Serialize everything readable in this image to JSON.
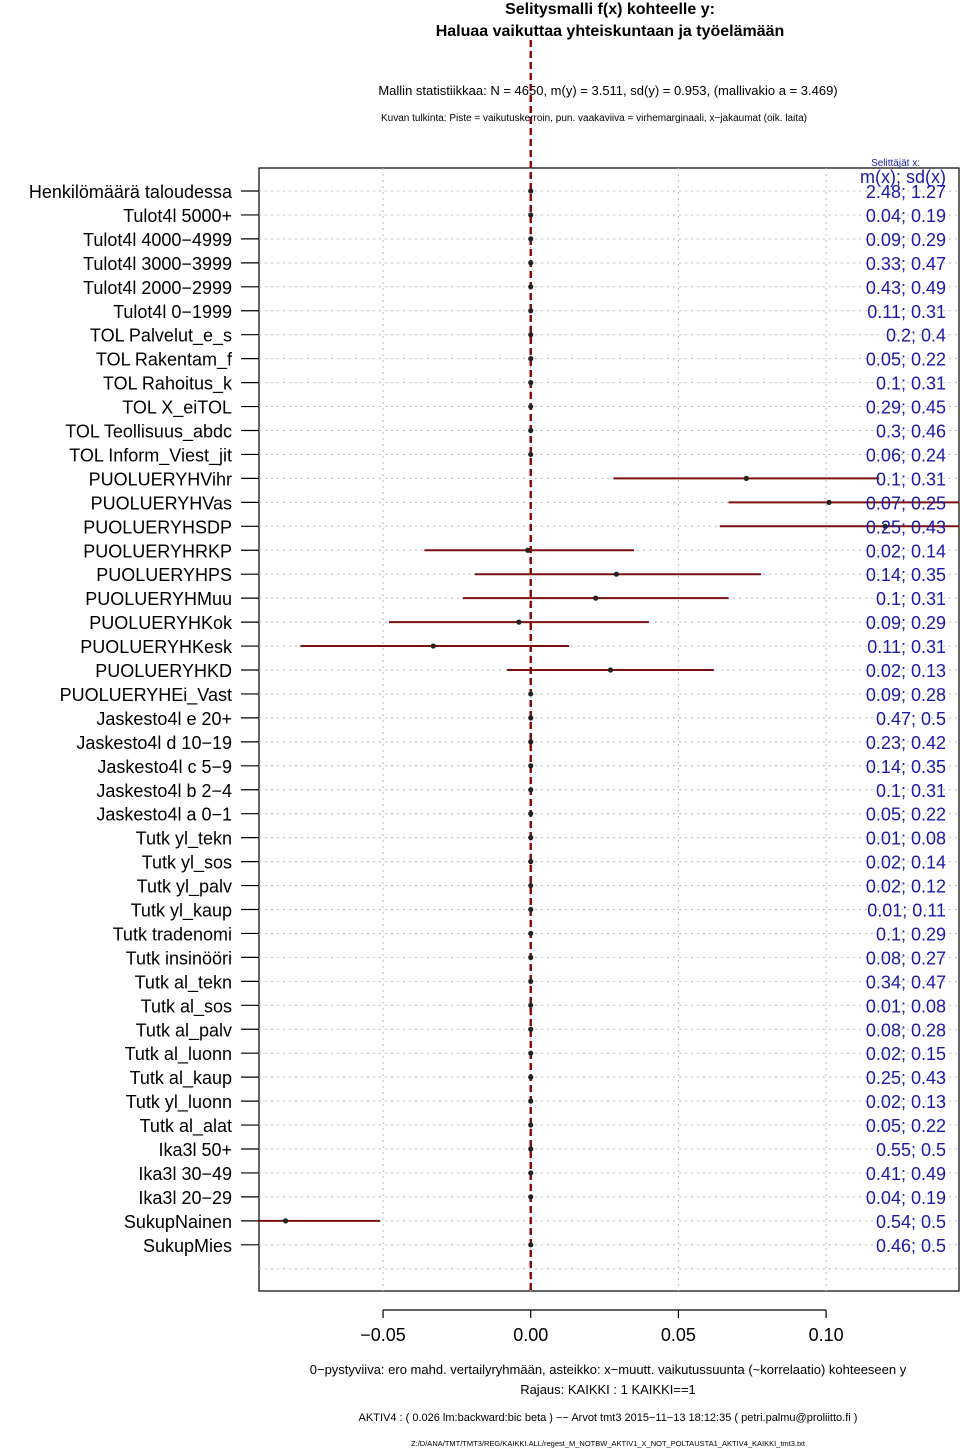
{
  "chart_data": {
    "type": "scatter",
    "title": "Selitysmalli f(x) kohteelle y:",
    "subtitle": "Haluaa vaikuttaa yhteiskuntaan ja työelämään",
    "stats_line": "Mallin statistiikkaa: N = 4650, m(y) = 3.511, sd(y) = 0.953, (mallivakio a = 3.469)",
    "reading_note": "Kuvan tulkinta: Piste = vaikutuskerroin, pun. vaakaviiva = virhemarginaali, x−jakaumat (oik. laita)",
    "explainers_label": "Selittäjät x:",
    "stats_header": "m(x); sd(x)",
    "xlim": [
      -0.092,
      0.145
    ],
    "xticks": [
      -0.05,
      0.0,
      0.05,
      0.1
    ],
    "xtick_labels": [
      "−0.05",
      "0.00",
      "0.05",
      "0.10"
    ],
    "xlabel": "0−pystyviiva: ero mahd. vertailyryhmään, asteikko: x−muutt. vaikutussuunta (~korrelaatio) kohteeseen y",
    "footer_scope": "Rajaus: KAIKKI : 1  KAIKKI==1",
    "footer_meta": "AKTIV4 : ( 0.026 lm:backward:bic beta )  −−  Arvot tmt3 2015−11−13 18:12:35 ( petri.palmu@proliitto.fi )",
    "footer_path": "Z:/D/ANA/TMT/TMT3/REG/KAIKKI.ALL/regest_M_NOTBW_AKTIV1_X_NOT_POLTAUSTA1_AKTIV4_KAIKKI_tmt3.txt",
    "colors": {
      "point": "#222222",
      "error_bar": "#7a1010",
      "zero_line": "#8b0000",
      "stats_text": "#1a1aa6",
      "grid": "#bbbbbb"
    },
    "rows": [
      {
        "label": "Henkilömäärä taloudessa",
        "coef": 0.0,
        "lo": null,
        "hi": null,
        "stats": "2.48; 1.27"
      },
      {
        "label": "Tulot4l 5000+",
        "coef": 0.0,
        "lo": null,
        "hi": null,
        "stats": "0.04; 0.19"
      },
      {
        "label": "Tulot4l 4000−4999",
        "coef": 0.0,
        "lo": null,
        "hi": null,
        "stats": "0.09; 0.29"
      },
      {
        "label": "Tulot4l 3000−3999",
        "coef": 0.0,
        "lo": null,
        "hi": null,
        "stats": "0.33; 0.47"
      },
      {
        "label": "Tulot4l 2000−2999",
        "coef": 0.0,
        "lo": null,
        "hi": null,
        "stats": "0.43; 0.49"
      },
      {
        "label": "Tulot4l 0−1999",
        "coef": 0.0,
        "lo": null,
        "hi": null,
        "stats": "0.11; 0.31"
      },
      {
        "label": "TOL Palvelut_e_s",
        "coef": 0.0,
        "lo": null,
        "hi": null,
        "stats": "0.2; 0.4"
      },
      {
        "label": "TOL Rakentam_f",
        "coef": 0.0,
        "lo": null,
        "hi": null,
        "stats": "0.05; 0.22"
      },
      {
        "label": "TOL Rahoitus_k",
        "coef": 0.0,
        "lo": null,
        "hi": null,
        "stats": "0.1; 0.31"
      },
      {
        "label": "TOL X_eiTOL",
        "coef": 0.0,
        "lo": null,
        "hi": null,
        "stats": "0.29; 0.45"
      },
      {
        "label": "TOL Teollisuus_abdc",
        "coef": 0.0,
        "lo": null,
        "hi": null,
        "stats": "0.3; 0.46"
      },
      {
        "label": "TOL Inform_Viest_jit",
        "coef": 0.0,
        "lo": null,
        "hi": null,
        "stats": "0.06; 0.24"
      },
      {
        "label": "PUOLUERYHVihr",
        "coef": 0.073,
        "lo": 0.028,
        "hi": 0.118,
        "stats": "0.1; 0.31"
      },
      {
        "label": "PUOLUERYHVas",
        "coef": 0.101,
        "lo": 0.067,
        "hi": 0.15,
        "stats": "0.07; 0.25"
      },
      {
        "label": "PUOLUERYHSDP",
        "coef": 0.12,
        "lo": 0.064,
        "hi": 0.15,
        "stats": "0.25; 0.43"
      },
      {
        "label": "PUOLUERYHRKP",
        "coef": -0.001,
        "lo": -0.036,
        "hi": 0.035,
        "stats": "0.02; 0.14"
      },
      {
        "label": "PUOLUERYHPS",
        "coef": 0.029,
        "lo": -0.019,
        "hi": 0.078,
        "stats": "0.14; 0.35"
      },
      {
        "label": "PUOLUERYHMuu",
        "coef": 0.022,
        "lo": -0.023,
        "hi": 0.067,
        "stats": "0.1; 0.31"
      },
      {
        "label": "PUOLUERYHKok",
        "coef": -0.004,
        "lo": -0.048,
        "hi": 0.04,
        "stats": "0.09; 0.29"
      },
      {
        "label": "PUOLUERYHKesk",
        "coef": -0.033,
        "lo": -0.078,
        "hi": 0.013,
        "stats": "0.11; 0.31"
      },
      {
        "label": "PUOLUERYHKD",
        "coef": 0.027,
        "lo": -0.008,
        "hi": 0.062,
        "stats": "0.02; 0.13"
      },
      {
        "label": "PUOLUERYHEi_Vast",
        "coef": 0.0,
        "lo": null,
        "hi": null,
        "stats": "0.09; 0.28"
      },
      {
        "label": "Jaskesto4l e 20+",
        "coef": 0.0,
        "lo": null,
        "hi": null,
        "stats": "0.47; 0.5"
      },
      {
        "label": "Jaskesto4l d 10−19",
        "coef": 0.0,
        "lo": null,
        "hi": null,
        "stats": "0.23; 0.42"
      },
      {
        "label": "Jaskesto4l c 5−9",
        "coef": 0.0,
        "lo": null,
        "hi": null,
        "stats": "0.14; 0.35"
      },
      {
        "label": "Jaskesto4l b 2−4",
        "coef": 0.0,
        "lo": null,
        "hi": null,
        "stats": "0.1; 0.31"
      },
      {
        "label": "Jaskesto4l a 0−1",
        "coef": 0.0,
        "lo": null,
        "hi": null,
        "stats": "0.05; 0.22"
      },
      {
        "label": "Tutk yl_tekn",
        "coef": 0.0,
        "lo": null,
        "hi": null,
        "stats": "0.01; 0.08"
      },
      {
        "label": "Tutk yl_sos",
        "coef": 0.0,
        "lo": null,
        "hi": null,
        "stats": "0.02; 0.14"
      },
      {
        "label": "Tutk yl_palv",
        "coef": 0.0,
        "lo": null,
        "hi": null,
        "stats": "0.02; 0.12"
      },
      {
        "label": "Tutk yl_kaup",
        "coef": 0.0,
        "lo": null,
        "hi": null,
        "stats": "0.01; 0.11"
      },
      {
        "label": "Tutk tradenomi",
        "coef": 0.0,
        "lo": null,
        "hi": null,
        "stats": "0.1; 0.29"
      },
      {
        "label": "Tutk insinööri",
        "coef": 0.0,
        "lo": null,
        "hi": null,
        "stats": "0.08; 0.27"
      },
      {
        "label": "Tutk al_tekn",
        "coef": 0.0,
        "lo": null,
        "hi": null,
        "stats": "0.34; 0.47"
      },
      {
        "label": "Tutk al_sos",
        "coef": 0.0,
        "lo": null,
        "hi": null,
        "stats": "0.01; 0.08"
      },
      {
        "label": "Tutk al_palv",
        "coef": 0.0,
        "lo": null,
        "hi": null,
        "stats": "0.08; 0.28"
      },
      {
        "label": "Tutk al_luonn",
        "coef": 0.0,
        "lo": null,
        "hi": null,
        "stats": "0.02; 0.15"
      },
      {
        "label": "Tutk al_kaup",
        "coef": 0.0,
        "lo": null,
        "hi": null,
        "stats": "0.25; 0.43"
      },
      {
        "label": "Tutk yl_luonn",
        "coef": 0.0,
        "lo": null,
        "hi": null,
        "stats": "0.02; 0.13"
      },
      {
        "label": "Tutk al_alat",
        "coef": 0.0,
        "lo": null,
        "hi": null,
        "stats": "0.05; 0.22"
      },
      {
        "label": "Ika3l 50+",
        "coef": 0.0,
        "lo": null,
        "hi": null,
        "stats": "0.55; 0.5"
      },
      {
        "label": "Ika3l 30−49",
        "coef": 0.0,
        "lo": null,
        "hi": null,
        "stats": "0.41; 0.49"
      },
      {
        "label": "Ika3l 20−29",
        "coef": 0.0,
        "lo": null,
        "hi": null,
        "stats": "0.04; 0.19"
      },
      {
        "label": "SukupNainen",
        "coef": -0.083,
        "lo": -0.092,
        "hi": -0.051,
        "stats": "0.54; 0.5"
      },
      {
        "label": "SukupMies",
        "coef": 0.0,
        "lo": null,
        "hi": null,
        "stats": "0.46; 0.5"
      }
    ]
  }
}
